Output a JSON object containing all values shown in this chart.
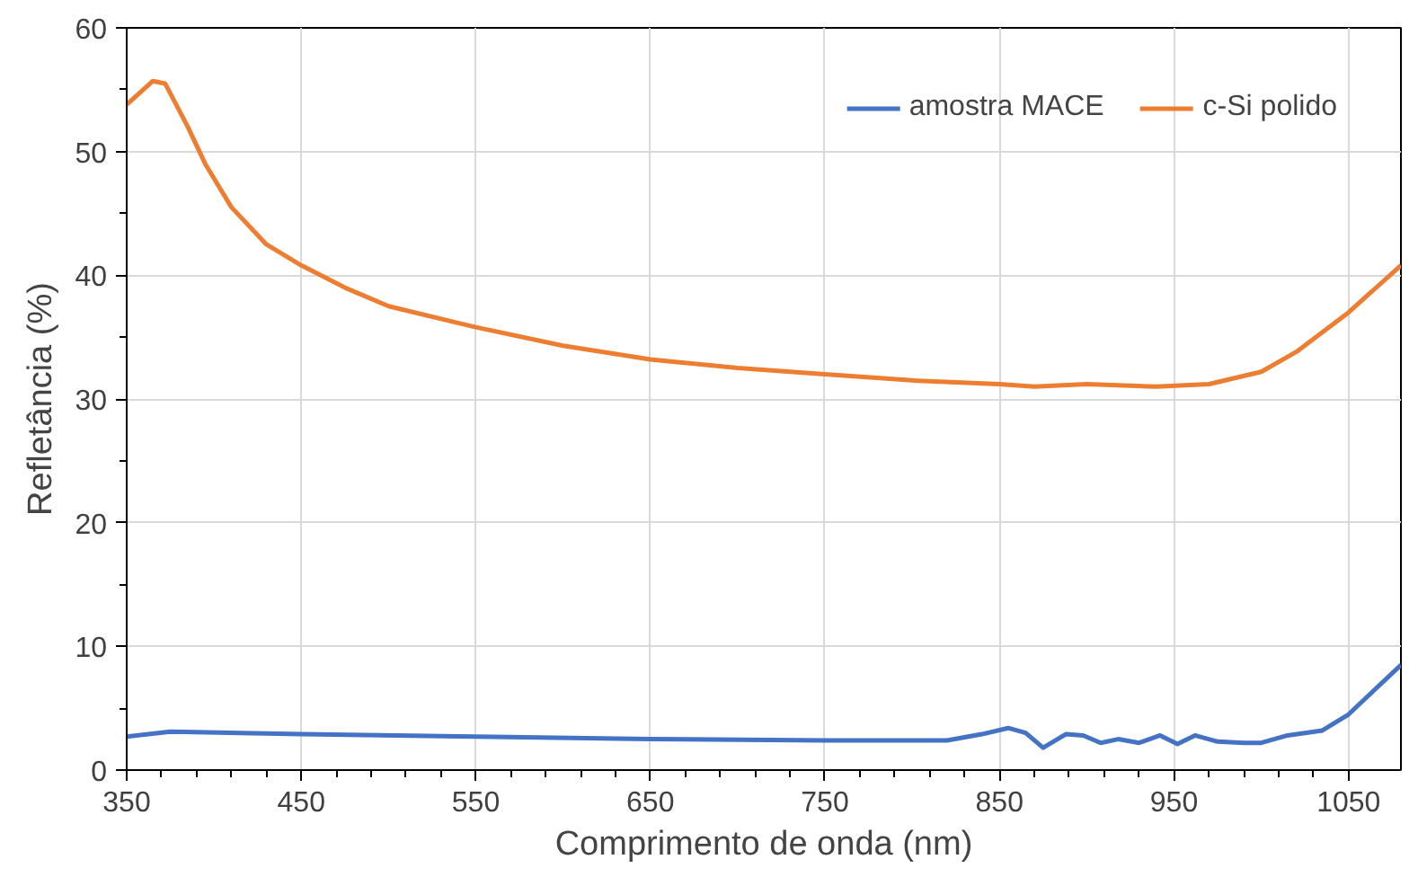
{
  "chart_data": {
    "type": "line",
    "xlabel": "Comprimento de onda (nm)",
    "ylabel": "Refletância (%)",
    "xlim": [
      350,
      1080
    ],
    "ylim": [
      0,
      60
    ],
    "xticks": [
      350,
      450,
      550,
      650,
      750,
      850,
      950,
      1050
    ],
    "yticks": [
      0,
      10,
      20,
      30,
      40,
      50,
      60
    ],
    "grid": true,
    "legend": "top right",
    "line_style": "solid",
    "marker": "none",
    "series": [
      {
        "name": "amostra MACE",
        "color": "#4472c4",
        "x": [
          350,
          375,
          450,
          550,
          650,
          750,
          820,
          840,
          855,
          865,
          875,
          888,
          898,
          908,
          918,
          930,
          942,
          952,
          962,
          975,
          990,
          1000,
          1015,
          1035,
          1050,
          1065,
          1080
        ],
        "values": [
          2.7,
          3.1,
          2.9,
          2.7,
          2.5,
          2.4,
          2.4,
          2.9,
          3.4,
          3.0,
          1.8,
          2.9,
          2.8,
          2.2,
          2.5,
          2.2,
          2.8,
          2.1,
          2.8,
          2.3,
          2.2,
          2.2,
          2.8,
          3.2,
          4.5,
          6.5,
          8.5
        ]
      },
      {
        "name": "c-Si polido",
        "color": "#ed7d31",
        "x": [
          350,
          365,
          372,
          385,
          395,
          410,
          430,
          450,
          475,
          500,
          550,
          600,
          650,
          700,
          750,
          800,
          850,
          870,
          900,
          940,
          970,
          1000,
          1020,
          1050,
          1080
        ],
        "values": [
          53.8,
          55.7,
          55.5,
          52,
          49,
          45.5,
          42.5,
          40.8,
          39,
          37.5,
          35.8,
          34.3,
          33.2,
          32.5,
          32,
          31.5,
          31.2,
          31.0,
          31.2,
          31.0,
          31.2,
          32.2,
          33.8,
          37,
          40.8
        ]
      }
    ]
  }
}
